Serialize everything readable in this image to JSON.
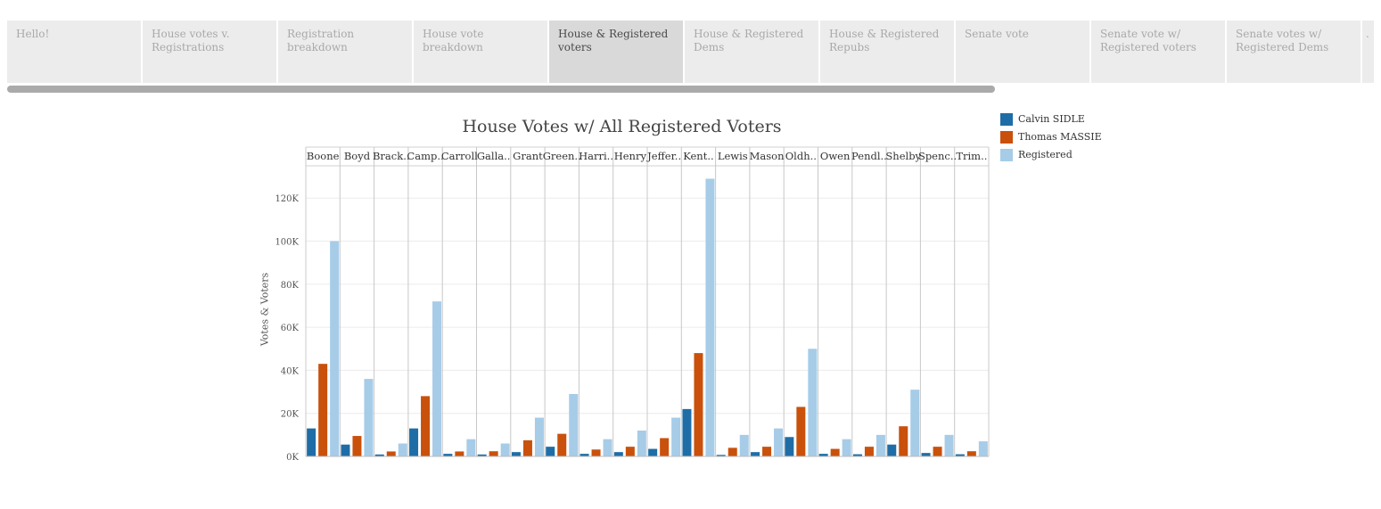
{
  "tabs": [
    {
      "label": "Hello!",
      "active": false
    },
    {
      "label": "House votes v. Registrations",
      "active": false
    },
    {
      "label": "Registration breakdown",
      "active": false
    },
    {
      "label": "House vote breakdown",
      "active": false
    },
    {
      "label": "House & Registered voters",
      "active": true
    },
    {
      "label": "House & Registered Dems",
      "active": false
    },
    {
      "label": "House & Registered Repubs",
      "active": false
    },
    {
      "label": "Senate vote",
      "active": false
    },
    {
      "label": "Senate vote w/ Registered voters",
      "active": false
    },
    {
      "label": "Senate votes w/ Registered Dems",
      "active": false
    },
    {
      "label": ".",
      "active": false
    }
  ],
  "colors": {
    "Calvin SIDLE": "#1f6da6",
    "Thomas MASSIE": "#c9510c",
    "Registered": "#a6cce8"
  },
  "chart_data": {
    "type": "bar",
    "title": "House Votes w/ All Registered Voters",
    "ylabel": "Votes & Voters",
    "ylim": [
      0,
      135000
    ],
    "yticks": [
      0,
      20000,
      40000,
      60000,
      80000,
      100000,
      120000
    ],
    "ytick_labels": [
      "0K",
      "20K",
      "40K",
      "60K",
      "80K",
      "100K",
      "120K"
    ],
    "grid": true,
    "legend_position": "right",
    "categories": [
      "Boone",
      "Boyd",
      "Brack..",
      "Camp..",
      "Carroll",
      "Galla..",
      "Grant",
      "Green..",
      "Harri..",
      "Henry",
      "Jeffer..",
      "Kent..",
      "Lewis",
      "Mason",
      "Oldh..",
      "Owen",
      "Pendl..",
      "Shelby",
      "Spenc..",
      "Trim.."
    ],
    "series": [
      {
        "name": "Calvin SIDLE",
        "values": [
          13000,
          5500,
          900,
          13000,
          1200,
          900,
          2000,
          4500,
          1200,
          2000,
          3500,
          22000,
          700,
          2000,
          9000,
          1200,
          1000,
          5500,
          1600,
          1000
        ]
      },
      {
        "name": "Thomas MASSIE",
        "values": [
          43000,
          9500,
          2300,
          28000,
          2300,
          2400,
          7500,
          10500,
          3200,
          4500,
          8500,
          48000,
          4000,
          4500,
          23000,
          3500,
          4500,
          14000,
          4500,
          2400
        ]
      },
      {
        "name": "Registered",
        "values": [
          100000,
          36000,
          6000,
          72000,
          8000,
          6000,
          18000,
          29000,
          8000,
          12000,
          18000,
          129000,
          10000,
          13000,
          50000,
          8000,
          10000,
          31000,
          10000,
          7000
        ]
      }
    ]
  }
}
